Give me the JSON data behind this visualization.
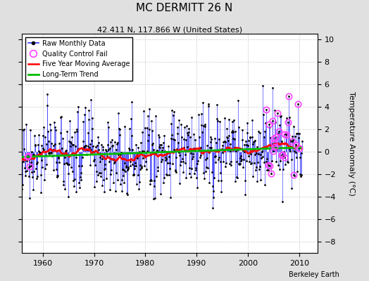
{
  "title": "MC DERMITT 26 N",
  "subtitle": "42.411 N, 117.866 W (United States)",
  "credit": "Berkeley Earth",
  "ylabel": "Temperature Anomaly (°C)",
  "xlim": [
    1956.0,
    2013.5
  ],
  "ylim": [
    -9,
    10.5
  ],
  "yticks": [
    -8,
    -6,
    -4,
    -2,
    0,
    2,
    4,
    6,
    8,
    10
  ],
  "xticks": [
    1960,
    1970,
    1980,
    1990,
    2000,
    2010
  ],
  "outer_bg": "#e0e0e0",
  "inner_bg": "#ffffff",
  "raw_line_color": "#3333ff",
  "raw_marker_color": "#000000",
  "qc_fail_color": "#ff44ff",
  "moving_avg_color": "#ff0000",
  "trend_color": "#00bb00",
  "seed": 77,
  "n_months": 660,
  "start_year": 1955.5
}
